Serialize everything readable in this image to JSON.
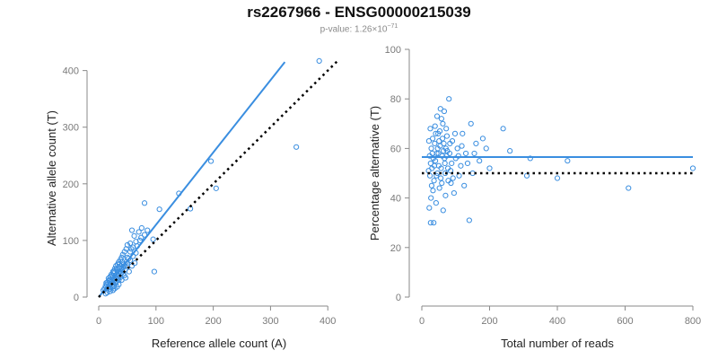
{
  "header": {
    "title": "rs2267966 - ENSG00000215039",
    "pvalue_prefix": "p-value: 1.26×10",
    "pvalue_exponent": "−71"
  },
  "colors": {
    "series": "#3a8ee0",
    "points": "#3a8ee0",
    "reference_line": "#000000",
    "axis": "#8a8a8a",
    "tick_text": "#7a7a7a"
  },
  "chart_data": [
    {
      "type": "scatter",
      "name": "left",
      "xlabel": "Reference allele count (A)",
      "ylabel": "Alternative allele count (T)",
      "xlim": [
        0,
        420
      ],
      "ylim": [
        0,
        420
      ],
      "xticks": [
        0,
        100,
        200,
        300,
        400
      ],
      "yticks": [
        0,
        100,
        200,
        300,
        400
      ],
      "grid": false,
      "fit_line": {
        "x": [
          0,
          325
        ],
        "y": [
          0,
          415
        ]
      },
      "reference_line": {
        "x": [
          0,
          420
        ],
        "y": [
          0,
          420
        ],
        "style": "dotted"
      },
      "points": [
        {
          "x": 385,
          "y": 417
        },
        {
          "x": 345,
          "y": 265
        },
        {
          "x": 196,
          "y": 240
        },
        {
          "x": 205,
          "y": 192
        },
        {
          "x": 140,
          "y": 183
        },
        {
          "x": 80,
          "y": 166
        },
        {
          "x": 106,
          "y": 155
        },
        {
          "x": 160,
          "y": 156
        },
        {
          "x": 95,
          "y": 102
        },
        {
          "x": 97,
          "y": 45
        },
        {
          "x": 75,
          "y": 122
        },
        {
          "x": 70,
          "y": 115
        },
        {
          "x": 62,
          "y": 108
        },
        {
          "x": 58,
          "y": 118
        },
        {
          "x": 65,
          "y": 98
        },
        {
          "x": 55,
          "y": 95
        },
        {
          "x": 50,
          "y": 92
        },
        {
          "x": 48,
          "y": 85
        },
        {
          "x": 45,
          "y": 80
        },
        {
          "x": 42,
          "y": 75
        },
        {
          "x": 40,
          "y": 70
        },
        {
          "x": 38,
          "y": 66
        },
        {
          "x": 35,
          "y": 62
        },
        {
          "x": 33,
          "y": 58
        },
        {
          "x": 30,
          "y": 55
        },
        {
          "x": 28,
          "y": 50
        },
        {
          "x": 25,
          "y": 45
        },
        {
          "x": 22,
          "y": 40
        },
        {
          "x": 20,
          "y": 36
        },
        {
          "x": 18,
          "y": 30
        },
        {
          "x": 15,
          "y": 26
        },
        {
          "x": 12,
          "y": 20
        },
        {
          "x": 10,
          "y": 15
        },
        {
          "x": 8,
          "y": 12
        },
        {
          "x": 30,
          "y": 35
        },
        {
          "x": 32,
          "y": 40
        },
        {
          "x": 35,
          "y": 45
        },
        {
          "x": 28,
          "y": 30
        },
        {
          "x": 25,
          "y": 25
        },
        {
          "x": 22,
          "y": 28
        },
        {
          "x": 20,
          "y": 22
        },
        {
          "x": 18,
          "y": 18
        },
        {
          "x": 40,
          "y": 50
        },
        {
          "x": 45,
          "y": 55
        },
        {
          "x": 50,
          "y": 60
        },
        {
          "x": 55,
          "y": 65
        },
        {
          "x": 60,
          "y": 72
        },
        {
          "x": 65,
          "y": 78
        },
        {
          "x": 30,
          "y": 25
        },
        {
          "x": 35,
          "y": 30
        },
        {
          "x": 38,
          "y": 35
        },
        {
          "x": 42,
          "y": 40
        },
        {
          "x": 45,
          "y": 38
        },
        {
          "x": 40,
          "y": 30
        },
        {
          "x": 35,
          "y": 22
        },
        {
          "x": 32,
          "y": 18
        },
        {
          "x": 28,
          "y": 15
        },
        {
          "x": 25,
          "y": 12
        },
        {
          "x": 20,
          "y": 10
        },
        {
          "x": 15,
          "y": 8
        },
        {
          "x": 12,
          "y": 6
        },
        {
          "x": 50,
          "y": 70
        },
        {
          "x": 55,
          "y": 80
        },
        {
          "x": 60,
          "y": 88
        },
        {
          "x": 48,
          "y": 62
        },
        {
          "x": 44,
          "y": 58
        },
        {
          "x": 36,
          "y": 52
        },
        {
          "x": 26,
          "y": 42
        },
        {
          "x": 24,
          "y": 35
        },
        {
          "x": 18,
          "y": 28
        },
        {
          "x": 14,
          "y": 22
        },
        {
          "x": 33,
          "y": 48
        },
        {
          "x": 29,
          "y": 38
        },
        {
          "x": 37,
          "y": 44
        },
        {
          "x": 43,
          "y": 52
        },
        {
          "x": 52,
          "y": 68
        },
        {
          "x": 67,
          "y": 90
        },
        {
          "x": 72,
          "y": 100
        },
        {
          "x": 80,
          "y": 110
        },
        {
          "x": 85,
          "y": 118
        },
        {
          "x": 47,
          "y": 34
        },
        {
          "x": 53,
          "y": 45
        },
        {
          "x": 58,
          "y": 55
        },
        {
          "x": 63,
          "y": 60
        },
        {
          "x": 27,
          "y": 20
        },
        {
          "x": 31,
          "y": 28
        },
        {
          "x": 24,
          "y": 18
        },
        {
          "x": 19,
          "y": 14
        },
        {
          "x": 16,
          "y": 16
        },
        {
          "x": 21,
          "y": 24
        },
        {
          "x": 34,
          "y": 33
        },
        {
          "x": 39,
          "y": 41
        },
        {
          "x": 46,
          "y": 48
        },
        {
          "x": 41,
          "y": 62
        },
        {
          "x": 36,
          "y": 58
        },
        {
          "x": 31,
          "y": 50
        },
        {
          "x": 27,
          "y": 46
        },
        {
          "x": 23,
          "y": 38
        },
        {
          "x": 17,
          "y": 33
        },
        {
          "x": 13,
          "y": 25
        },
        {
          "x": 57,
          "y": 85
        },
        {
          "x": 74,
          "y": 105
        }
      ]
    },
    {
      "type": "scatter",
      "name": "right",
      "xlabel": "Total number of reads",
      "ylabel": "Percentage alternative (T)",
      "xlim": [
        0,
        800
      ],
      "ylim": [
        0,
        100
      ],
      "xticks": [
        0,
        200,
        400,
        600,
        800
      ],
      "yticks": [
        0,
        20,
        40,
        60,
        80,
        100
      ],
      "grid": false,
      "fit_line": {
        "x": [
          0,
          800
        ],
        "y": [
          56.5,
          56.5
        ]
      },
      "reference_line": {
        "x": [
          0,
          800
        ],
        "y": [
          50,
          50
        ],
        "style": "dotted"
      },
      "points": [
        {
          "x": 800,
          "y": 52
        },
        {
          "x": 610,
          "y": 44
        },
        {
          "x": 430,
          "y": 55
        },
        {
          "x": 400,
          "y": 48
        },
        {
          "x": 320,
          "y": 56
        },
        {
          "x": 310,
          "y": 49
        },
        {
          "x": 260,
          "y": 59
        },
        {
          "x": 240,
          "y": 68
        },
        {
          "x": 200,
          "y": 52
        },
        {
          "x": 180,
          "y": 64
        },
        {
          "x": 170,
          "y": 55
        },
        {
          "x": 160,
          "y": 62
        },
        {
          "x": 150,
          "y": 50
        },
        {
          "x": 145,
          "y": 70
        },
        {
          "x": 140,
          "y": 31
        },
        {
          "x": 130,
          "y": 58
        },
        {
          "x": 125,
          "y": 45
        },
        {
          "x": 120,
          "y": 66
        },
        {
          "x": 115,
          "y": 53
        },
        {
          "x": 110,
          "y": 49
        },
        {
          "x": 105,
          "y": 60
        },
        {
          "x": 100,
          "y": 56
        },
        {
          "x": 95,
          "y": 42
        },
        {
          "x": 90,
          "y": 63
        },
        {
          "x": 85,
          "y": 51
        },
        {
          "x": 80,
          "y": 80
        },
        {
          "x": 78,
          "y": 47
        },
        {
          "x": 75,
          "y": 59
        },
        {
          "x": 72,
          "y": 68
        },
        {
          "x": 70,
          "y": 41
        },
        {
          "x": 68,
          "y": 54
        },
        {
          "x": 65,
          "y": 62
        },
        {
          "x": 63,
          "y": 35
        },
        {
          "x": 60,
          "y": 57
        },
        {
          "x": 58,
          "y": 72
        },
        {
          "x": 56,
          "y": 48
        },
        {
          "x": 54,
          "y": 61
        },
        {
          "x": 52,
          "y": 44
        },
        {
          "x": 50,
          "y": 53
        },
        {
          "x": 48,
          "y": 66
        },
        {
          "x": 46,
          "y": 50
        },
        {
          "x": 44,
          "y": 58
        },
        {
          "x": 42,
          "y": 38
        },
        {
          "x": 40,
          "y": 55
        },
        {
          "x": 38,
          "y": 62
        },
        {
          "x": 36,
          "y": 47
        },
        {
          "x": 35,
          "y": 30
        },
        {
          "x": 34,
          "y": 56
        },
        {
          "x": 32,
          "y": 64
        },
        {
          "x": 30,
          "y": 52
        },
        {
          "x": 29,
          "y": 45
        },
        {
          "x": 28,
          "y": 60
        },
        {
          "x": 27,
          "y": 40
        },
        {
          "x": 26,
          "y": 54
        },
        {
          "x": 25,
          "y": 68
        },
        {
          "x": 24,
          "y": 49
        },
        {
          "x": 23,
          "y": 57
        },
        {
          "x": 22,
          "y": 36
        },
        {
          "x": 21,
          "y": 63
        },
        {
          "x": 20,
          "y": 51
        },
        {
          "x": 66,
          "y": 75
        },
        {
          "x": 62,
          "y": 70
        },
        {
          "x": 74,
          "y": 65
        },
        {
          "x": 82,
          "y": 58
        },
        {
          "x": 88,
          "y": 54
        },
        {
          "x": 92,
          "y": 48
        },
        {
          "x": 55,
          "y": 76
        },
        {
          "x": 45,
          "y": 73
        },
        {
          "x": 39,
          "y": 69
        },
        {
          "x": 33,
          "y": 43
        },
        {
          "x": 31,
          "y": 58
        },
        {
          "x": 57,
          "y": 52
        },
        {
          "x": 53,
          "y": 67
        },
        {
          "x": 47,
          "y": 60
        },
        {
          "x": 43,
          "y": 49
        },
        {
          "x": 37,
          "y": 53
        },
        {
          "x": 59,
          "y": 46
        },
        {
          "x": 61,
          "y": 64
        },
        {
          "x": 67,
          "y": 56
        },
        {
          "x": 71,
          "y": 60
        },
        {
          "x": 77,
          "y": 52
        },
        {
          "x": 83,
          "y": 62
        },
        {
          "x": 98,
          "y": 66
        },
        {
          "x": 108,
          "y": 57
        },
        {
          "x": 118,
          "y": 61
        },
        {
          "x": 135,
          "y": 54
        },
        {
          "x": 155,
          "y": 58
        },
        {
          "x": 190,
          "y": 60
        },
        {
          "x": 26,
          "y": 30
        },
        {
          "x": 41,
          "y": 66
        },
        {
          "x": 49,
          "y": 58
        },
        {
          "x": 51,
          "y": 63
        },
        {
          "x": 64,
          "y": 59
        },
        {
          "x": 69,
          "y": 50
        },
        {
          "x": 73,
          "y": 57
        },
        {
          "x": 86,
          "y": 46
        }
      ]
    }
  ]
}
